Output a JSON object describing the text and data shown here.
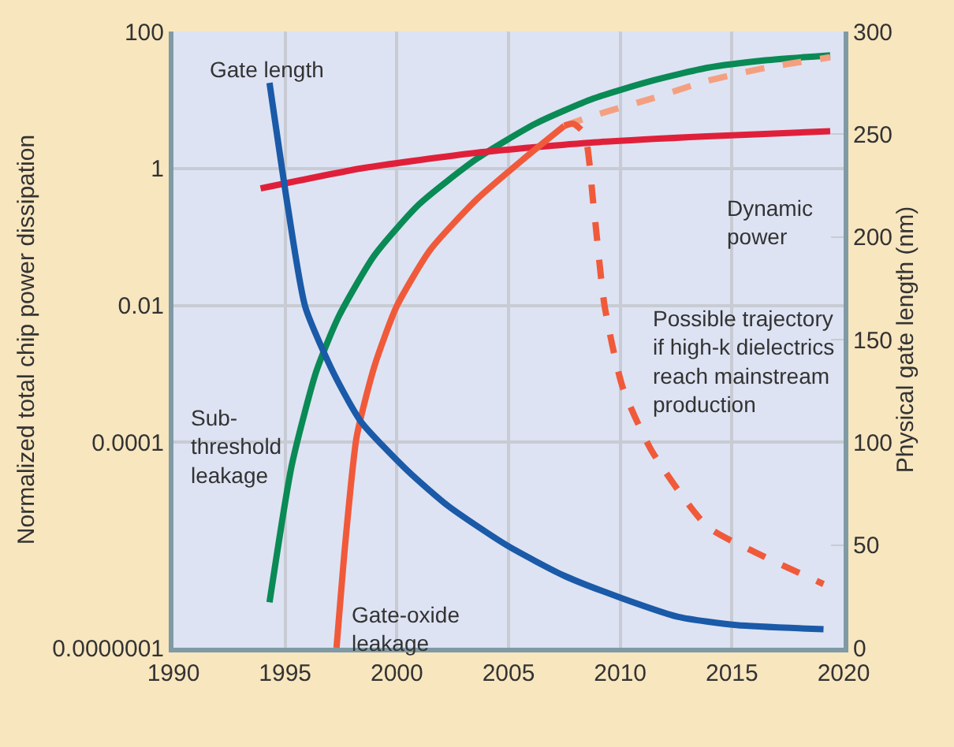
{
  "chart_data": {
    "type": "line",
    "xlabel": null,
    "ylabel": "Normalized total chip power dissipation",
    "y2label": "Physical gate length (nm)",
    "xlim": [
      1990,
      2020
    ],
    "xticks": [
      1990,
      1995,
      2000,
      2005,
      2010,
      2015,
      2020
    ],
    "ylim": [
      1e-07,
      100
    ],
    "yticks": [
      100,
      1,
      0.01,
      0.0001,
      {
        "value": 1e-07,
        "label": "0.0000001"
      }
    ],
    "y2lim": [
      0,
      300
    ],
    "y2ticks": [
      0,
      50,
      100,
      150,
      200,
      250,
      300
    ],
    "log": "y",
    "grid": true,
    "legend": false,
    "marker": "none",
    "series": [
      {
        "name": "Gate length",
        "axis": "y2",
        "color": "#1a5aa8",
        "x": [
          1994.3,
          1995.1,
          1995.9,
          1997.2,
          1998.4,
          2000.5,
          2002.3,
          2004.9,
          2007.5,
          2010.1,
          2012.6,
          2015.2,
          2019.1
        ],
        "values": [
          275,
          216,
          166,
          133,
          110,
          86,
          69,
          50,
          35,
          24,
          15,
          11,
          9
        ]
      },
      {
        "name": "Sub-\nthreshold\nleakage",
        "color": "#0a8a55",
        "x": [
          1994.3,
          1995.3,
          1996.4,
          1997.4,
          1999.0,
          2001.0,
          2003.6,
          2006.2,
          2008.8,
          2011.4,
          2013.9,
          2016.5,
          2019.4
        ],
        "values": [
          4.6e-07,
          4.7e-05,
          0.0011,
          0.0069,
          0.054,
          0.3,
          1.4,
          4.5,
          10.5,
          19,
          29.5,
          38,
          45
        ]
      },
      {
        "name": "Dynamic\npower",
        "color": "#e0203a",
        "x": [
          1993.9,
          1998.4,
          2003.6,
          2008.8,
          2013.9,
          2019.4
        ],
        "values": [
          0.51,
          1.0,
          1.7,
          2.4,
          2.95,
          3.5
        ]
      },
      {
        "name": "Gate-oxide\nleakage",
        "color": "#f05a3a",
        "x": [
          1997.3,
          1997.7,
          1998.2,
          1999.0,
          2000.0,
          2001.5,
          2003.6,
          2005.7,
          2007.5
        ],
        "values": [
          1e-07,
          3.6e-06,
          0.00012,
          0.0013,
          0.0098,
          0.065,
          0.36,
          1.4,
          4.2
        ]
      },
      {
        "color": "#f4a080",
        "line_style": "dashed",
        "x": [
          2007.5,
          2008.8,
          2011.4,
          2013.9,
          2016.5,
          2019.4
        ],
        "values": [
          4.2,
          5.9,
          10.5,
          19,
          29.5,
          42
        ]
      },
      {
        "name": "Possible trajectory\nif high-k dielectrics\nreach mainstream\nproduction",
        "color": "#f05a3a",
        "line_style": "dashed",
        "x": [
          2007.5,
          2007.9,
          2008.4,
          2008.8,
          2009.3,
          2010.1,
          2011.4,
          2013.9,
          2016.5,
          2019.1
        ],
        "values": [
          4.2,
          4.5,
          3.2,
          0.3,
          0.0098,
          0.00065,
          7.6e-05,
          5.9e-06,
          2.1e-06,
          8.5e-07
        ]
      }
    ]
  }
}
